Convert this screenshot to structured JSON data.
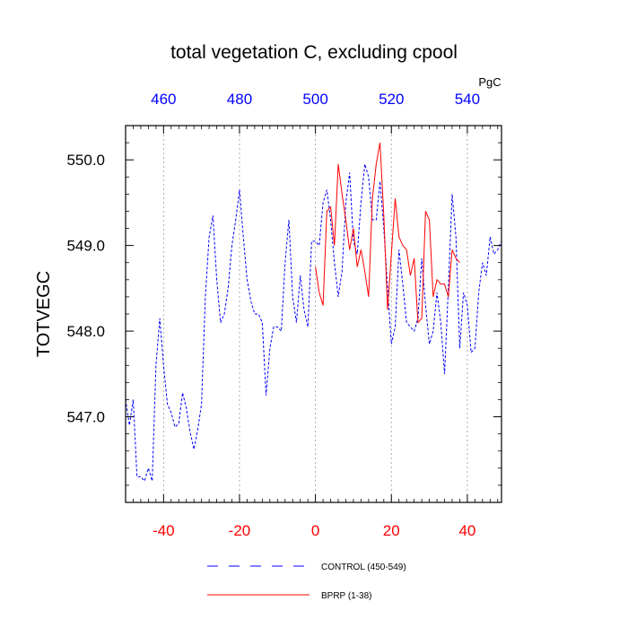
{
  "chart_data": {
    "type": "line",
    "title": "total vegetation C, excluding cpool",
    "ylabel": "TOTVEGC",
    "top_axis_units": "PgC",
    "xlim": [
      -50,
      49
    ],
    "ylim": [
      546.0,
      550.4
    ],
    "x_ticks": [
      -40,
      -20,
      0,
      20,
      40
    ],
    "x_tick_labels": [
      "-40",
      "-20",
      "0",
      "20",
      "40"
    ],
    "top_ticks": [
      460,
      480,
      500,
      520,
      540
    ],
    "top_tick_labels": [
      "460",
      "480",
      "500",
      "520",
      "540"
    ],
    "y_ticks": [
      547.0,
      548.0,
      549.0,
      550.0
    ],
    "y_tick_labels": [
      "547.0",
      "548.0",
      "549.0",
      "550.0"
    ],
    "colors": {
      "control": "#0000ff",
      "bprp": "#ff0000",
      "top_ticks": "#0000ff",
      "bottom_ticks": "#ff0000",
      "grid": "#999999"
    },
    "series": [
      {
        "name": "CONTROL (450-549)",
        "style": "dashed",
        "x": [
          -50,
          -49,
          -48,
          -47,
          -46,
          -45,
          -44,
          -43,
          -42,
          -41,
          -40,
          -39,
          -38,
          -37,
          -36,
          -35,
          -34,
          -33,
          -32,
          -31,
          -30,
          -29,
          -28,
          -27,
          -26,
          -25,
          -24,
          -23,
          -22,
          -21,
          -20,
          -19,
          -18,
          -17,
          -16,
          -15,
          -14,
          -13,
          -12,
          -11,
          -10,
          -9,
          -8,
          -7,
          -6,
          -5,
          -4,
          -3,
          -2,
          -1,
          0,
          1,
          2,
          3,
          4,
          5,
          6,
          7,
          8,
          9,
          10,
          11,
          12,
          13,
          14,
          15,
          16,
          17,
          18,
          19,
          20,
          21,
          22,
          23,
          24,
          25,
          26,
          27,
          28,
          29,
          30,
          31,
          32,
          33,
          34,
          35,
          36,
          37,
          38,
          39,
          40,
          41,
          42,
          43,
          44,
          45,
          46,
          47,
          48,
          49
        ],
        "values": [
          547.2,
          546.9,
          547.2,
          546.3,
          546.3,
          546.25,
          546.4,
          546.25,
          547.6,
          548.15,
          547.6,
          547.15,
          547.05,
          546.88,
          546.92,
          547.28,
          547.1,
          546.82,
          546.62,
          546.85,
          547.15,
          548.4,
          549.1,
          549.35,
          548.6,
          548.1,
          548.2,
          548.5,
          549.0,
          549.3,
          549.65,
          549.1,
          548.6,
          548.35,
          548.2,
          548.2,
          548.1,
          547.25,
          547.8,
          548.05,
          548.05,
          548.0,
          548.8,
          549.3,
          548.4,
          548.1,
          548.65,
          548.25,
          548.05,
          549.05,
          549.05,
          549.0,
          549.5,
          549.65,
          549.3,
          548.8,
          548.4,
          548.7,
          549.5,
          549.85,
          549.05,
          548.9,
          549.5,
          549.95,
          549.8,
          549.3,
          549.3,
          549.75,
          549.2,
          548.5,
          547.85,
          548.05,
          548.95,
          548.55,
          548.1,
          548.05,
          548.0,
          548.15,
          548.85,
          548.3,
          547.85,
          548.0,
          548.45,
          548.1,
          547.5,
          548.5,
          549.6,
          549.1,
          547.8,
          548.45,
          548.3,
          547.75,
          547.8,
          548.45,
          548.8,
          548.65,
          549.1,
          548.9,
          548.95,
          549.05
        ]
      },
      {
        "name": "BPRP (1-38)",
        "style": "solid",
        "x": [
          0,
          1,
          2,
          3,
          4,
          5,
          6,
          7,
          8,
          9,
          10,
          11,
          12,
          13,
          14,
          15,
          16,
          17,
          18,
          19,
          20,
          21,
          22,
          23,
          24,
          25,
          26,
          27,
          28,
          29,
          30,
          31,
          32,
          33,
          34,
          35,
          36,
          37,
          38
        ],
        "values": [
          548.75,
          548.45,
          548.3,
          549.4,
          549.45,
          549.0,
          549.95,
          549.6,
          549.3,
          548.95,
          549.2,
          548.75,
          548.95,
          548.7,
          548.4,
          549.55,
          549.95,
          550.2,
          549.35,
          548.25,
          548.9,
          549.55,
          549.1,
          549.0,
          548.95,
          548.65,
          548.85,
          548.1,
          548.15,
          549.4,
          549.3,
          548.4,
          548.6,
          548.55,
          548.55,
          548.4,
          548.95,
          548.85,
          548.8
        ]
      }
    ]
  }
}
